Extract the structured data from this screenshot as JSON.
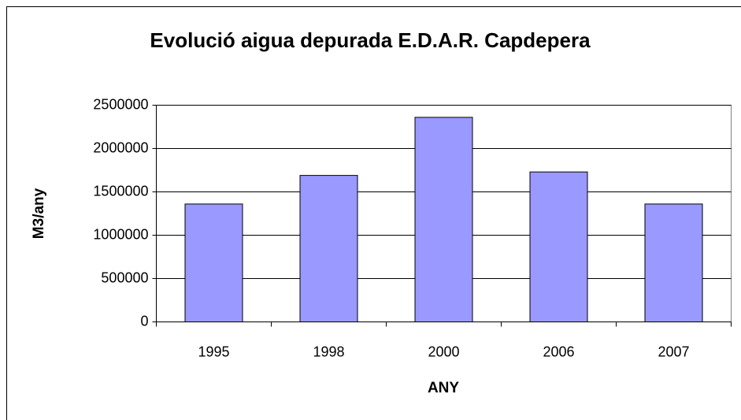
{
  "chart_data": {
    "type": "bar",
    "title": "Evolució aigua depurada E.D.A.R. Capdepera",
    "x_label": "ANY",
    "y_label": "M3/any",
    "categories": [
      "1995",
      "1998",
      "2000",
      "2006",
      "2007"
    ],
    "values": [
      1360000,
      1690000,
      2360000,
      1730000,
      1360000
    ],
    "color": "#9999ff",
    "ylim": [
      0,
      2500000
    ],
    "yticks": [
      0,
      500000,
      1000000,
      1500000,
      2000000,
      2500000
    ],
    "grid": true
  }
}
